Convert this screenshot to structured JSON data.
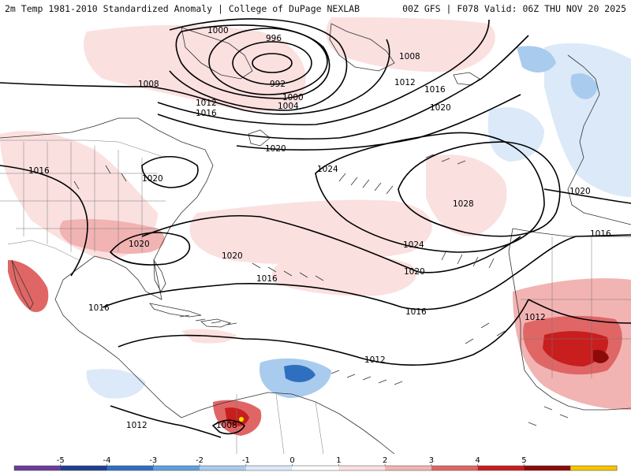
{
  "header": {
    "title_left": "2m Temp 1981-2010 Standardized Anomaly | College of DuPage NEXLAB",
    "title_right": "00Z GFS | F078 Valid: 06Z THU NOV 20 2025"
  },
  "isobars": {
    "labels": [
      "1000",
      "996",
      "992",
      "1000",
      "1004",
      "1008",
      "1012",
      "1016",
      "1020",
      "1024",
      "1028",
      "1016",
      "1020",
      "1012",
      "1012",
      "1008",
      "1016",
      "1008",
      "1012",
      "1016",
      "1020",
      "1020",
      "1020",
      "1016",
      "1020",
      "1024",
      "1020",
      "1016",
      "1012",
      "1016"
    ]
  },
  "colorbar": {
    "tick_labels": [
      "-5",
      "-4",
      "-3",
      "-2",
      "-1",
      "0",
      "1",
      "2",
      "3",
      "4",
      "5"
    ],
    "colors": [
      "#6a3d9a",
      "#1f3f8f",
      "#2f6fc0",
      "#5f9fdc",
      "#a9cbee",
      "#dbe9f8",
      "#ffffff",
      "#fbe0e0",
      "#f2b3b3",
      "#e06666",
      "#c81e1e",
      "#8b0a0a",
      "#f5c400"
    ]
  },
  "anomaly_colors": {
    "warm_light": "#fbe0e0",
    "warm_mid": "#f2b3b3",
    "warm_strong": "#e06666",
    "warm_hot": "#c81e1e",
    "warm_extreme": "#8b0a0a",
    "cold_light": "#dbe9f8",
    "cold_mid": "#a9cbee",
    "cold_strong": "#5f9fdc",
    "cold_hot": "#2f6fc0",
    "cold_extreme": "#1f3f8f",
    "peak_yellow": "#f5e000"
  }
}
